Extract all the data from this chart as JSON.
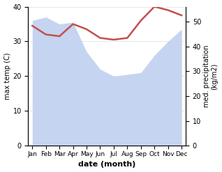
{
  "months": [
    "Jan",
    "Feb",
    "Mar",
    "Apr",
    "May",
    "Jun",
    "Jul",
    "Aug",
    "Sep",
    "Oct",
    "Nov",
    "Dec"
  ],
  "temp": [
    34.5,
    32.0,
    31.5,
    35.0,
    33.5,
    31.0,
    30.5,
    31.0,
    36.0,
    40.0,
    39.0,
    37.5
  ],
  "precip": [
    36.0,
    37.0,
    35.0,
    35.5,
    27.0,
    22.0,
    20.0,
    20.5,
    21.0,
    26.0,
    30.0,
    33.5
  ],
  "temp_color": "#c0504d",
  "precip_fill_color": "#c5d4f0",
  "ylim_left": [
    0,
    40
  ],
  "ylim_right": [
    0,
    56
  ],
  "right_ticks": [
    0,
    10,
    20,
    30,
    40,
    50
  ],
  "left_ticks": [
    0,
    10,
    20,
    30,
    40
  ],
  "ylabel_left": "max temp (C)",
  "ylabel_right": "med. precipitation\n(kg/m2)",
  "xlabel": "date (month)",
  "bg_color": "#ffffff",
  "temp_linewidth": 1.8,
  "grid_color": "#dddddd"
}
